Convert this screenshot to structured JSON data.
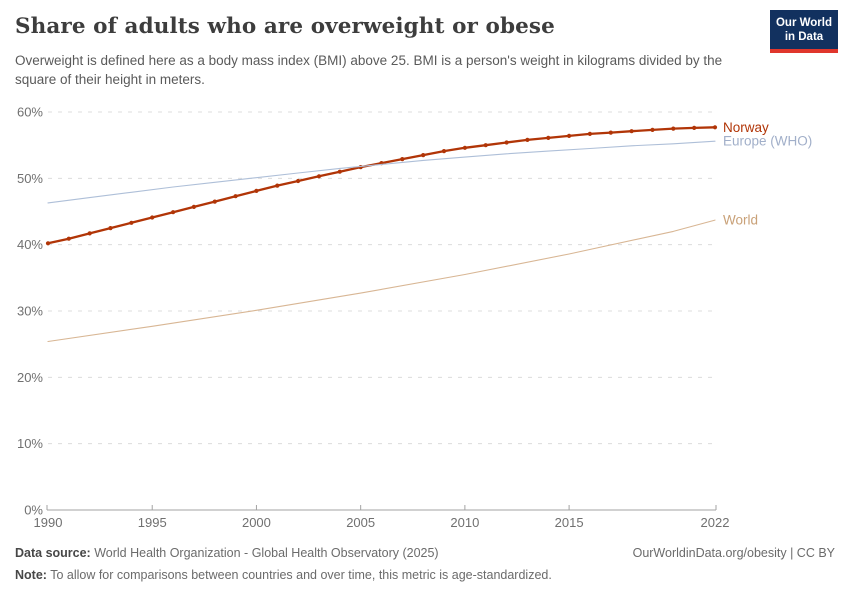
{
  "header": {
    "title": "Share of adults who are overweight or obese",
    "subtitle": "Overweight is defined here as a body mass index (BMI) above 25. BMI is a person's weight in kilograms divided by the square of their height in meters.",
    "logo": {
      "line1": "Our World",
      "line2": "in Data"
    }
  },
  "theme": {
    "background": "#ffffff",
    "grid": "#dcdcdc",
    "axis": "#a3a3a3",
    "tick_text": "#707070",
    "logo_bg": "#12315f",
    "logo_stripe": "#e0362c"
  },
  "chart_data": {
    "type": "line",
    "title": "Share of adults who are overweight or obese",
    "xlabel": "",
    "ylabel": "",
    "xlim": [
      1990,
      2022
    ],
    "ylim": [
      0,
      60
    ],
    "grid": "horizontal-dashed",
    "legend_position": "right-end-labels",
    "x_ticks": [
      1990,
      1995,
      2000,
      2005,
      2010,
      2015,
      2022
    ],
    "y_ticks": [
      {
        "value": 0,
        "label": "0%"
      },
      {
        "value": 10,
        "label": "10%"
      },
      {
        "value": 20,
        "label": "20%"
      },
      {
        "value": 30,
        "label": "30%"
      },
      {
        "value": 40,
        "label": "40%"
      },
      {
        "value": 50,
        "label": "50%"
      },
      {
        "value": 60,
        "label": "60%"
      }
    ],
    "series": [
      {
        "name": "Norway",
        "color": "#b13507",
        "label_color": "#b13507",
        "width": 2.3,
        "markers": true,
        "x": [
          1990,
          1991,
          1992,
          1993,
          1994,
          1995,
          1996,
          1997,
          1998,
          1999,
          2000,
          2001,
          2002,
          2003,
          2004,
          2005,
          2006,
          2007,
          2008,
          2009,
          2010,
          2011,
          2012,
          2013,
          2014,
          2015,
          2016,
          2017,
          2018,
          2019,
          2020,
          2021,
          2022
        ],
        "values": [
          40.2,
          40.9,
          41.7,
          42.5,
          43.3,
          44.1,
          44.9,
          45.7,
          46.5,
          47.3,
          48.1,
          48.9,
          49.6,
          50.3,
          51.0,
          51.7,
          52.3,
          52.9,
          53.5,
          54.1,
          54.6,
          55.0,
          55.4,
          55.8,
          56.1,
          56.4,
          56.7,
          56.9,
          57.1,
          57.3,
          57.5,
          57.6,
          57.7
        ]
      },
      {
        "name": "Europe (WHO)",
        "color": "#aebfd8",
        "label_color": "#a1afc9",
        "width": 1.1,
        "markers": false,
        "x": [
          1990,
          1992,
          1994,
          1996,
          1998,
          2000,
          2002,
          2004,
          2006,
          2008,
          2010,
          2012,
          2014,
          2016,
          2018,
          2020,
          2022
        ],
        "values": [
          46.3,
          47.1,
          47.9,
          48.7,
          49.4,
          50.1,
          50.8,
          51.5,
          52.1,
          52.7,
          53.2,
          53.7,
          54.1,
          54.5,
          54.9,
          55.2,
          55.6
        ]
      },
      {
        "name": "World",
        "color": "#d8b694",
        "label_color": "#c9a178",
        "width": 1.1,
        "markers": false,
        "x": [
          1990,
          1995,
          2000,
          2005,
          2010,
          2015,
          2020,
          2022
        ],
        "values": [
          25.4,
          27.7,
          30.1,
          32.7,
          35.5,
          38.6,
          42.0,
          43.7
        ]
      }
    ]
  },
  "footer": {
    "data_source_label": "Data source:",
    "data_source_value": "World Health Organization - Global Health Observatory (2025)",
    "link": "OurWorldinData.org/obesity | CC BY",
    "note_label": "Note:",
    "note_value": "To allow for comparisons between countries and over time, this metric is age-standardized."
  }
}
